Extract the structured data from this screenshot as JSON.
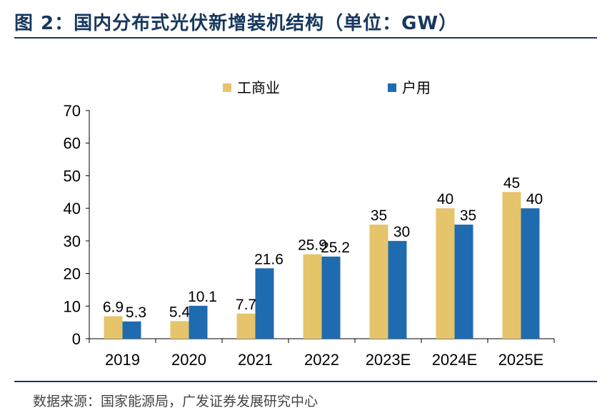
{
  "figure": {
    "title": "图 2：国内分布式光伏新增装机结构（单位：GW）",
    "source": "数据来源：国家能源局，广发证券发展研究中心"
  },
  "chart_data": {
    "type": "bar",
    "title": "国内分布式光伏新增装机结构（单位：GW）",
    "xlabel": "",
    "ylabel": "GW",
    "categories": [
      "2019",
      "2020",
      "2021",
      "2022",
      "2023E",
      "2024E",
      "2025E"
    ],
    "series": [
      {
        "name": "工商业",
        "values": [
          6.9,
          5.4,
          7.7,
          25.9,
          35,
          40,
          45
        ],
        "labels": [
          "6.9",
          "5.4",
          "7.7",
          "25.9",
          "35",
          "40",
          "45"
        ],
        "color": "#e5c46b"
      },
      {
        "name": "户用",
        "values": [
          5.3,
          10.1,
          21.6,
          25.2,
          30,
          35,
          40
        ],
        "labels": [
          "5.3",
          "10.1",
          "21.6",
          "25.2",
          "30",
          "35",
          "40"
        ],
        "color": "#1f6bb0"
      }
    ],
    "ylim": [
      0,
      70
    ],
    "yticks": [
      "0",
      "10",
      "20",
      "30",
      "40",
      "50",
      "60",
      "70"
    ],
    "legend_position": "top-center",
    "grid": false
  }
}
